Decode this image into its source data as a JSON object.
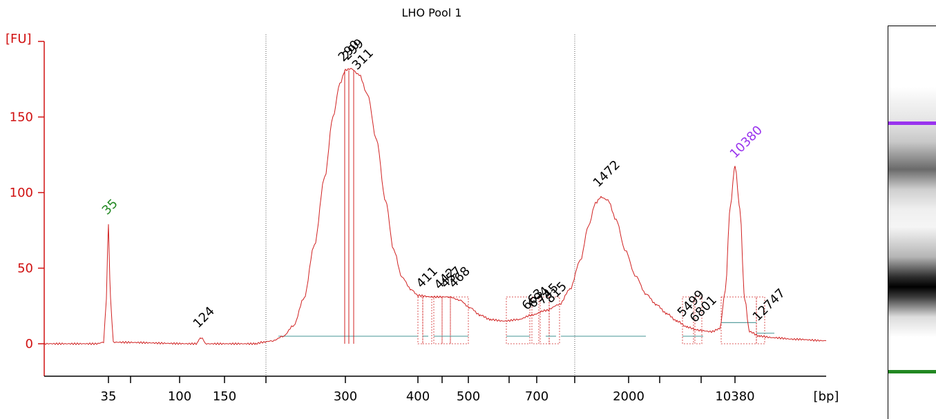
{
  "title": "LHO Pool 1",
  "chart_data": {
    "type": "line",
    "title": "LHO Pool 1",
    "ylabel": "[FU]",
    "xlabel": "[bp]",
    "ylim": [
      -20,
      190
    ],
    "yticks": [
      0,
      50,
      100,
      150
    ],
    "xticks": [
      "35",
      "100",
      "150",
      "300",
      "400",
      "500",
      "700",
      "2000",
      "10380"
    ],
    "x_axis_scale": "nonlinear (bp, sized by electrophoresis migration)",
    "series_color": "#d02020",
    "lower_marker": {
      "bp": 35,
      "fu": 79,
      "color": "#228822"
    },
    "upper_marker": {
      "bp": 10380,
      "fu": 118,
      "color": "#9933ee"
    },
    "peaks": [
      {
        "label": "35",
        "fu": 79,
        "color": "#228822"
      },
      {
        "label": "124",
        "fu": 4,
        "color": "#000000"
      },
      {
        "label": "290",
        "fu": 182,
        "color": "#000000"
      },
      {
        "label": "299",
        "fu": 182,
        "color": "#000000"
      },
      {
        "label": "311",
        "fu": 181,
        "color": "#000000"
      },
      {
        "label": "411",
        "fu": 32,
        "color": "#000000"
      },
      {
        "label": "442",
        "fu": 31,
        "color": "#000000"
      },
      {
        "label": "457",
        "fu": 31,
        "color": "#000000"
      },
      {
        "label": "468",
        "fu": 31,
        "color": "#000000"
      },
      {
        "label": "663",
        "fu": 19,
        "color": "#000000"
      },
      {
        "label": "694",
        "fu": 20,
        "color": "#000000"
      },
      {
        "label": "745",
        "fu": 22,
        "color": "#000000"
      },
      {
        "label": "815",
        "fu": 24,
        "color": "#000000"
      },
      {
        "label": "1472",
        "fu": 97,
        "color": "#000000"
      },
      {
        "label": "5499",
        "fu": 10,
        "color": "#000000"
      },
      {
        "label": "6801",
        "fu": 8,
        "color": "#000000"
      },
      {
        "label": "10380",
        "fu": 118,
        "color": "#9933ee"
      },
      {
        "label": "12747",
        "fu": 7,
        "color": "#000000"
      }
    ],
    "grid": false
  },
  "gel": {
    "marker_upper_color": "#9933ee",
    "marker_lower_color": "#228822"
  }
}
